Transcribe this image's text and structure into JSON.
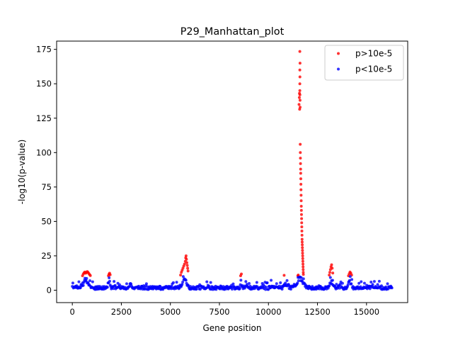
{
  "chart_data": {
    "type": "scatter",
    "title": "P29_Manhattan_plot",
    "xlabel": "Gene position",
    "ylabel": "-log10(p-value)",
    "xlim": [
      -800,
      17100
    ],
    "ylim": [
      -9,
      181
    ],
    "xticks": [
      0,
      2500,
      5000,
      7500,
      10000,
      12500,
      15000
    ],
    "xtick_labels": [
      "0",
      "2500",
      "5000",
      "7500",
      "10000",
      "12500",
      "15000"
    ],
    "yticks": [
      0,
      25,
      50,
      75,
      100,
      125,
      150,
      175
    ],
    "ytick_labels": [
      "0",
      "25",
      "50",
      "75",
      "100",
      "125",
      "150",
      "175"
    ],
    "legend_position": "top-right",
    "grid": false,
    "series": [
      {
        "name": "p>10e-5",
        "color": "#ff0000",
        "points": [
          [
            520,
            10.5
          ],
          [
            560,
            11.8
          ],
          [
            600,
            12.6
          ],
          [
            640,
            13.2
          ],
          [
            680,
            12.4
          ],
          [
            720,
            12.9
          ],
          [
            760,
            13.5
          ],
          [
            800,
            13.0
          ],
          [
            840,
            12.2
          ],
          [
            880,
            11.4
          ],
          [
            920,
            10.6
          ],
          [
            1840,
            10.5
          ],
          [
            1870,
            11.6
          ],
          [
            1900,
            12.4
          ],
          [
            1930,
            11.2
          ],
          [
            5520,
            11.0
          ],
          [
            5560,
            13.0
          ],
          [
            5600,
            14.5
          ],
          [
            5640,
            16.0
          ],
          [
            5680,
            17.5
          ],
          [
            5720,
            19.0
          ],
          [
            5760,
            21.0
          ],
          [
            5780,
            23.5
          ],
          [
            5800,
            25.0
          ],
          [
            5820,
            22.5
          ],
          [
            5840,
            20.0
          ],
          [
            5860,
            18.0
          ],
          [
            5880,
            16.0
          ],
          [
            5900,
            14.0
          ],
          [
            8580,
            10.5
          ],
          [
            8620,
            11.8
          ],
          [
            10800,
            10.8
          ],
          [
            11500,
            10.5
          ],
          [
            11520,
            11.0
          ],
          [
            11560,
            135
          ],
          [
            11575,
            140
          ],
          [
            11580,
            143
          ],
          [
            11590,
            131.5
          ],
          [
            11600,
            145
          ],
          [
            11605,
            142
          ],
          [
            11610,
            138
          ],
          [
            11615,
            133
          ],
          [
            11600,
            150
          ],
          [
            11605,
            155
          ],
          [
            11600,
            160
          ],
          [
            11610,
            165
          ],
          [
            11600,
            173.5
          ],
          [
            11620,
            106
          ],
          [
            11625,
            100
          ],
          [
            11630,
            96
          ],
          [
            11635,
            92
          ],
          [
            11640,
            88
          ],
          [
            11645,
            85
          ],
          [
            11650,
            81
          ],
          [
            11655,
            77
          ],
          [
            11660,
            73
          ],
          [
            11665,
            69
          ],
          [
            11670,
            65
          ],
          [
            11675,
            61
          ],
          [
            11680,
            58
          ],
          [
            11685,
            55
          ],
          [
            11690,
            52
          ],
          [
            11695,
            49
          ],
          [
            11700,
            46
          ],
          [
            11705,
            43
          ],
          [
            11710,
            40
          ],
          [
            11715,
            37
          ],
          [
            11720,
            35
          ],
          [
            11725,
            33
          ],
          [
            11730,
            31
          ],
          [
            11735,
            29
          ],
          [
            11740,
            27
          ],
          [
            11745,
            25
          ],
          [
            11750,
            23
          ],
          [
            11755,
            21
          ],
          [
            11760,
            19
          ],
          [
            11765,
            17
          ],
          [
            11770,
            15
          ],
          [
            11775,
            13
          ],
          [
            11780,
            11.5
          ],
          [
            13100,
            11.0
          ],
          [
            13130,
            13.0
          ],
          [
            13160,
            15.0
          ],
          [
            13190,
            17.0
          ],
          [
            13220,
            18.5
          ],
          [
            13250,
            16.0
          ],
          [
            13280,
            12.5
          ],
          [
            14080,
            10.5
          ],
          [
            14120,
            12.0
          ],
          [
            14160,
            13.2
          ],
          [
            14200,
            12.4
          ],
          [
            14240,
            11.0
          ]
        ]
      },
      {
        "name": "p<10e-5",
        "color": "#0000ff",
        "points": []
      }
    ]
  }
}
